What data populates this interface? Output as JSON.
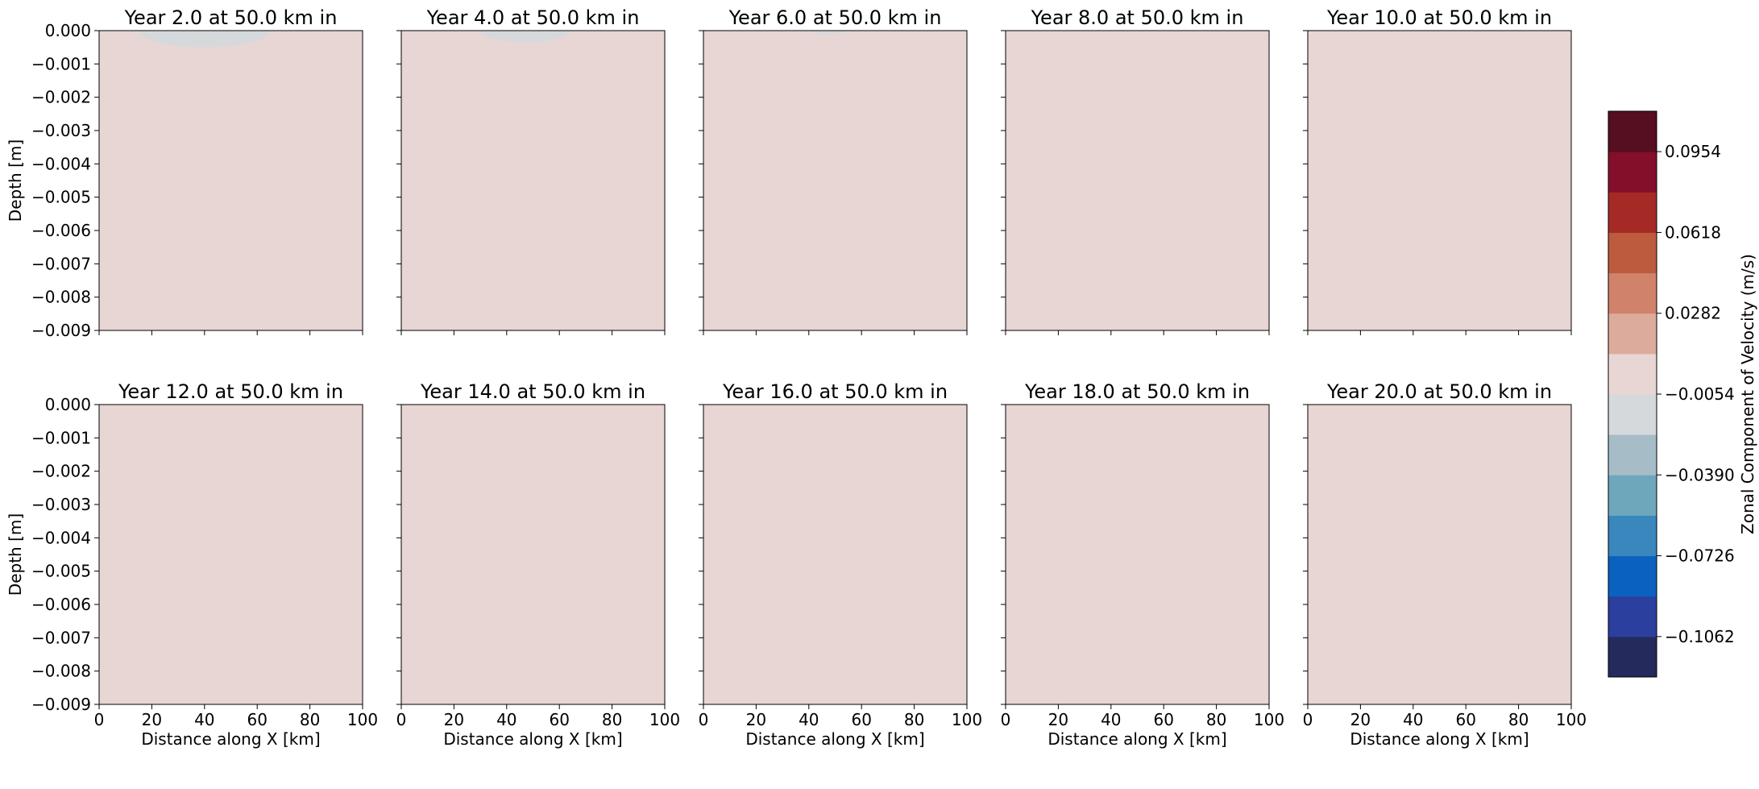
{
  "chart_data": {
    "type": "heatmap",
    "layout": {
      "rows": 2,
      "cols": 5,
      "sharex": true,
      "sharey": true
    },
    "xlabel": "Distance along X [km]",
    "ylabel": "Depth [m]",
    "xlim": [
      0,
      100
    ],
    "ylim": [
      -0.009,
      0.0
    ],
    "xticks": [
      0,
      20,
      40,
      60,
      80,
      100
    ],
    "yticks": [
      0.0,
      -0.001,
      -0.002,
      -0.003,
      -0.004,
      -0.005,
      -0.006,
      -0.007,
      -0.008,
      -0.009
    ],
    "ytick_labels": [
      "0.000",
      "−0.001",
      "−0.002",
      "−0.003",
      "−0.004",
      "−0.005",
      "−0.006",
      "−0.007",
      "−0.008",
      "−0.009"
    ],
    "background_color": "#e8d6d4",
    "panels": [
      {
        "title": "Year 2.0 at 50.0 km in",
        "anomaly": {
          "x_center": 40,
          "x_half_width": 25,
          "depth": -0.0005,
          "color": "#d6d9dc"
        }
      },
      {
        "title": "Year 4.0 at 50.0 km in",
        "anomaly": {
          "x_center": 47,
          "x_half_width": 17,
          "depth": -0.00035,
          "color": "#d6d9dc"
        }
      },
      {
        "title": "Year 6.0 at 50.0 km in",
        "anomaly": {
          "x_center": 47,
          "x_half_width": 7,
          "depth": -0.0001,
          "color": "#d6d9dc"
        }
      },
      {
        "title": "Year 8.0 at 50.0 km in"
      },
      {
        "title": "Year 10.0 at 50.0 km in"
      },
      {
        "title": "Year 12.0 at 50.0 km in"
      },
      {
        "title": "Year 14.0 at 50.0 km in"
      },
      {
        "title": "Year 16.0 at 50.0 km in"
      },
      {
        "title": "Year 18.0 at 50.0 km in"
      },
      {
        "title": "Year 20.0 at 50.0 km in"
      }
    ],
    "colorbar": {
      "label": "Zonal Component of Velocity (m/s)",
      "colors": [
        "#242a5c",
        "#2b3f9e",
        "#0b61c0",
        "#3a87be",
        "#6ea6bc",
        "#a6bcc7",
        "#d6d9dc",
        "#e8d6d4",
        "#ddab9c",
        "#d0836a",
        "#bd5b3e",
        "#a52a26",
        "#830f2a",
        "#560f20"
      ],
      "ticks": [
        -0.1062,
        -0.0726,
        -0.039,
        -0.0054,
        0.0282,
        0.0618,
        0.0954
      ],
      "tick_labels": [
        "−0.1062",
        "−0.0726",
        "−0.0390",
        "−0.0054",
        "0.0282",
        "0.0618",
        "0.0954"
      ],
      "range": [
        -0.123,
        0.1122
      ]
    }
  }
}
